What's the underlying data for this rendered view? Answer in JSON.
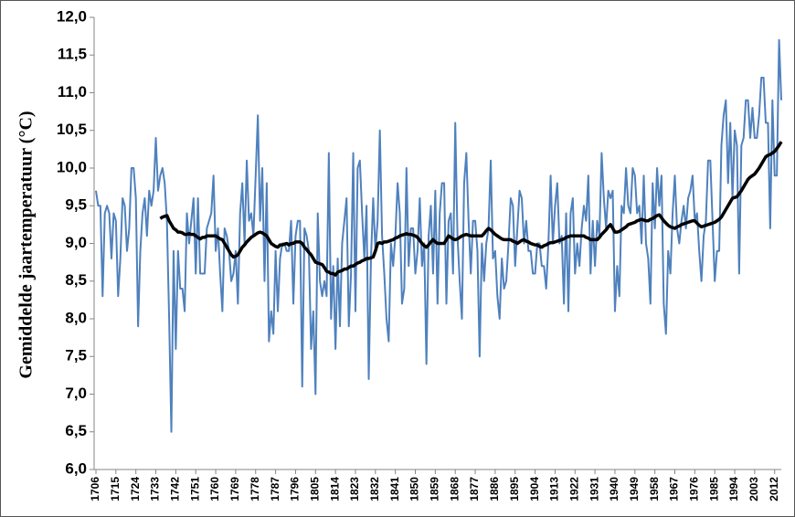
{
  "chart_data": {
    "type": "line",
    "y_label": "Gemiddelde jaartemperatuur (°C)",
    "x": [
      1706,
      1707,
      1708,
      1709,
      1710,
      1711,
      1712,
      1713,
      1714,
      1715,
      1716,
      1717,
      1718,
      1719,
      1720,
      1721,
      1722,
      1723,
      1724,
      1725,
      1726,
      1727,
      1728,
      1729,
      1730,
      1731,
      1732,
      1733,
      1734,
      1735,
      1736,
      1737,
      1738,
      1739,
      1740,
      1741,
      1742,
      1743,
      1744,
      1745,
      1746,
      1747,
      1748,
      1749,
      1750,
      1751,
      1752,
      1753,
      1754,
      1755,
      1756,
      1757,
      1758,
      1759,
      1760,
      1761,
      1762,
      1763,
      1764,
      1765,
      1766,
      1767,
      1768,
      1769,
      1770,
      1771,
      1772,
      1773,
      1774,
      1775,
      1776,
      1777,
      1778,
      1779,
      1780,
      1781,
      1782,
      1783,
      1784,
      1785,
      1786,
      1787,
      1788,
      1789,
      1790,
      1791,
      1792,
      1793,
      1794,
      1795,
      1796,
      1797,
      1798,
      1799,
      1800,
      1801,
      1802,
      1803,
      1804,
      1805,
      1806,
      1807,
      1808,
      1809,
      1810,
      1811,
      1812,
      1813,
      1814,
      1815,
      1816,
      1817,
      1818,
      1819,
      1820,
      1821,
      1822,
      1823,
      1824,
      1825,
      1826,
      1827,
      1828,
      1829,
      1830,
      1831,
      1832,
      1833,
      1834,
      1835,
      1836,
      1837,
      1838,
      1839,
      1840,
      1841,
      1842,
      1843,
      1844,
      1845,
      1846,
      1847,
      1848,
      1849,
      1850,
      1851,
      1852,
      1853,
      1854,
      1855,
      1856,
      1857,
      1858,
      1859,
      1860,
      1861,
      1862,
      1863,
      1864,
      1865,
      1866,
      1867,
      1868,
      1869,
      1870,
      1871,
      1872,
      1873,
      1874,
      1875,
      1876,
      1877,
      1878,
      1879,
      1880,
      1881,
      1882,
      1883,
      1884,
      1885,
      1886,
      1887,
      1888,
      1889,
      1890,
      1891,
      1892,
      1893,
      1894,
      1895,
      1896,
      1897,
      1898,
      1899,
      1900,
      1901,
      1902,
      1903,
      1904,
      1905,
      1906,
      1907,
      1908,
      1909,
      1910,
      1911,
      1912,
      1913,
      1914,
      1915,
      1916,
      1917,
      1918,
      1919,
      1920,
      1921,
      1922,
      1923,
      1924,
      1925,
      1926,
      1927,
      1928,
      1929,
      1930,
      1931,
      1932,
      1933,
      1934,
      1935,
      1936,
      1937,
      1938,
      1939,
      1940,
      1941,
      1942,
      1943,
      1944,
      1945,
      1946,
      1947,
      1948,
      1949,
      1950,
      1951,
      1952,
      1953,
      1954,
      1955,
      1956,
      1957,
      1958,
      1959,
      1960,
      1961,
      1962,
      1963,
      1964,
      1965,
      1966,
      1967,
      1968,
      1969,
      1970,
      1971,
      1972,
      1973,
      1974,
      1975,
      1976,
      1977,
      1978,
      1979,
      1980,
      1981,
      1982,
      1983,
      1984,
      1985,
      1986,
      1987,
      1988,
      1989,
      1990,
      1991,
      1992,
      1993,
      1994,
      1995,
      1996,
      1997,
      1998,
      1999,
      2000,
      2001,
      2002,
      2003,
      2004,
      2005,
      2006,
      2007,
      2008,
      2009,
      2010,
      2011,
      2012,
      2013,
      2014,
      2015
    ],
    "series": [
      {
        "color": "#4f81bd",
        "values": [
          9.7,
          9.5,
          9.5,
          8.3,
          9.4,
          9.5,
          9.4,
          8.8,
          9.4,
          9.3,
          8.3,
          8.8,
          9.6,
          9.5,
          8.9,
          9.2,
          10.0,
          10.0,
          9.6,
          7.9,
          8.9,
          9.4,
          9.6,
          9.1,
          9.7,
          9.5,
          9.7,
          10.4,
          9.7,
          9.9,
          10.0,
          9.8,
          9.3,
          8.0,
          6.5,
          8.9,
          7.6,
          8.9,
          8.4,
          8.4,
          8.1,
          9.4,
          9.0,
          9.3,
          9.6,
          8.6,
          9.6,
          8.6,
          8.6,
          8.6,
          9.2,
          9.3,
          9.4,
          9.9,
          8.9,
          9.2,
          8.6,
          8.1,
          9.2,
          9.1,
          8.9,
          8.5,
          8.6,
          8.9,
          8.2,
          9.4,
          9.8,
          9.0,
          10.1,
          9.3,
          9.4,
          9.1,
          9.9,
          10.7,
          9.3,
          10.0,
          8.5,
          9.8,
          7.7,
          8.1,
          7.8,
          8.9,
          8.1,
          8.8,
          9.0,
          9.0,
          8.9,
          8.9,
          9.3,
          8.2,
          9.1,
          9.3,
          9.3,
          7.1,
          9.2,
          9.1,
          8.9,
          7.6,
          8.1,
          7.0,
          9.4,
          8.5,
          8.3,
          8.5,
          8.3,
          10.2,
          8.0,
          8.7,
          7.6,
          8.8,
          7.9,
          9.0,
          9.3,
          9.6,
          7.9,
          8.6,
          10.2,
          8.1,
          10.0,
          10.1,
          9.4,
          8.8,
          9.5,
          7.2,
          8.8,
          9.6,
          8.9,
          9.3,
          10.5,
          9.1,
          8.6,
          8.0,
          7.7,
          9.0,
          8.7,
          9.1,
          9.8,
          9.4,
          8.2,
          8.4,
          10.0,
          8.7,
          9.2,
          9.2,
          8.6,
          8.9,
          9.6,
          8.7,
          9.0,
          7.4,
          9.1,
          9.5,
          8.6,
          9.7,
          8.2,
          9.4,
          9.8,
          9.8,
          8.2,
          9.3,
          9.4,
          8.6,
          10.6,
          9.1,
          8.5,
          8.0,
          9.8,
          10.2,
          9.3,
          8.6,
          9.3,
          9.3,
          8.9,
          7.5,
          9.0,
          8.5,
          9.0,
          9.2,
          10.1,
          8.8,
          8.9,
          8.3,
          8.0,
          8.8,
          8.4,
          8.5,
          9.0,
          9.6,
          9.5,
          8.7,
          9.2,
          9.7,
          9.6,
          9.0,
          9.3,
          8.9,
          8.9,
          8.6,
          8.6,
          9.0,
          9.0,
          8.7,
          8.7,
          8.4,
          9.0,
          9.9,
          9.0,
          9.5,
          9.8,
          9.0,
          9.1,
          8.2,
          9.4,
          8.1,
          9.4,
          9.6,
          8.6,
          9.0,
          8.7,
          9.2,
          9.5,
          9.3,
          9.9,
          8.6,
          9.3,
          8.7,
          9.3,
          9.1,
          10.2,
          9.6,
          9.2,
          9.7,
          9.6,
          9.7,
          8.1,
          8.7,
          8.3,
          9.5,
          9.4,
          10.0,
          9.5,
          9.4,
          10.0,
          9.9,
          9.4,
          9.5,
          9.0,
          9.9,
          9.0,
          8.8,
          8.2,
          9.8,
          9.2,
          10.0,
          9.5,
          9.9,
          8.2,
          7.8,
          8.9,
          8.6,
          9.4,
          9.9,
          9.2,
          9.0,
          9.3,
          9.5,
          9.2,
          9.6,
          9.7,
          9.9,
          9.3,
          9.4,
          8.9,
          8.5,
          9.1,
          9.3,
          10.1,
          10.1,
          9.3,
          8.5,
          8.9,
          8.9,
          10.3,
          10.7,
          10.9,
          9.8,
          10.6,
          9.6,
          10.5,
          10.3,
          8.6,
          10.3,
          10.4,
          10.9,
          10.9,
          10.4,
          10.8,
          10.4,
          10.4,
          10.7,
          11.2,
          11.2,
          10.6,
          10.6,
          9.2,
          10.9,
          9.9,
          9.9,
          11.7,
          10.9
        ]
      },
      {
        "color": "#000000",
        "values": [
          null,
          null,
          null,
          null,
          null,
          null,
          null,
          null,
          null,
          null,
          null,
          null,
          null,
          null,
          null,
          null,
          null,
          null,
          null,
          null,
          null,
          null,
          null,
          null,
          null,
          null,
          null,
          null,
          null,
          9.33,
          9.35,
          9.36,
          9.37,
          9.3,
          9.25,
          9.2,
          9.18,
          9.15,
          9.15,
          9.14,
          9.12,
          9.12,
          9.13,
          9.12,
          9.12,
          9.1,
          9.08,
          9.06,
          9.08,
          9.08,
          9.1,
          9.1,
          9.1,
          9.1,
          9.1,
          9.08,
          9.06,
          9.05,
          9.0,
          8.95,
          8.9,
          8.85,
          8.82,
          8.83,
          8.85,
          8.9,
          8.95,
          8.98,
          9.02,
          9.05,
          9.08,
          9.1,
          9.12,
          9.14,
          9.15,
          9.14,
          9.12,
          9.1,
          9.05,
          9.0,
          8.98,
          8.96,
          8.95,
          8.98,
          8.98,
          8.99,
          9.0,
          8.98,
          9.0,
          9.0,
          9.02,
          9.02,
          9.02,
          9.0,
          8.95,
          8.92,
          8.88,
          8.85,
          8.8,
          8.75,
          8.74,
          8.73,
          8.72,
          8.68,
          8.63,
          8.62,
          8.6,
          8.6,
          8.58,
          8.62,
          8.63,
          8.64,
          8.66,
          8.66,
          8.68,
          8.7,
          8.7,
          8.72,
          8.74,
          8.75,
          8.77,
          8.78,
          8.8,
          8.8,
          8.81,
          8.82,
          8.9,
          9.0,
          9.01,
          9.0,
          9.02,
          9.02,
          9.03,
          9.04,
          9.05,
          9.07,
          9.08,
          9.1,
          9.11,
          9.12,
          9.13,
          9.12,
          9.12,
          9.11,
          9.1,
          9.08,
          9.04,
          9.0,
          8.97,
          8.95,
          8.98,
          9.02,
          9.05,
          9.02,
          9.0,
          9.0,
          9.0,
          9.0,
          9.05,
          9.1,
          9.08,
          9.06,
          9.05,
          9.06,
          9.08,
          9.1,
          9.11,
          9.12,
          9.11,
          9.1,
          9.1,
          9.1,
          9.1,
          9.1,
          9.1,
          9.13,
          9.17,
          9.2,
          9.18,
          9.15,
          9.12,
          9.1,
          9.08,
          9.06,
          9.05,
          9.05,
          9.05,
          9.05,
          9.03,
          9.02,
          9.0,
          9.02,
          9.04,
          9.05,
          9.03,
          9.02,
          9.0,
          8.99,
          8.98,
          8.98,
          8.96,
          8.95,
          8.97,
          8.98,
          9.0,
          9.01,
          9.01,
          9.02,
          9.03,
          9.04,
          9.05,
          9.06,
          9.08,
          9.09,
          9.1,
          9.1,
          9.1,
          9.1,
          9.1,
          9.1,
          9.1,
          9.08,
          9.07,
          9.05,
          9.05,
          9.05,
          9.05,
          9.08,
          9.12,
          9.15,
          9.18,
          9.22,
          9.25,
          9.2,
          9.15,
          9.15,
          9.16,
          9.18,
          9.2,
          9.22,
          9.25,
          9.26,
          9.27,
          9.28,
          9.3,
          9.31,
          9.32,
          9.31,
          9.3,
          9.3,
          9.32,
          9.33,
          9.35,
          9.37,
          9.38,
          9.34,
          9.3,
          9.27,
          9.24,
          9.22,
          9.21,
          9.2,
          9.22,
          9.23,
          9.25,
          9.26,
          9.27,
          9.28,
          9.29,
          9.3,
          9.3,
          9.27,
          9.24,
          9.22,
          9.23,
          9.24,
          9.25,
          9.26,
          9.27,
          9.28,
          9.3,
          9.32,
          9.35,
          9.4,
          9.45,
          9.5,
          9.55,
          9.6,
          9.61,
          9.62,
          9.66,
          9.7,
          9.75,
          9.8,
          9.85,
          9.88,
          9.9,
          9.92,
          9.96,
          10.0,
          10.05,
          10.1,
          10.15,
          10.17,
          10.18,
          10.2,
          10.22,
          10.26,
          10.3,
          10.35
        ]
      }
    ],
    "xlim": [
      1706,
      2015
    ],
    "xticks": [
      1706,
      1715,
      1724,
      1733,
      1742,
      1751,
      1760,
      1769,
      1778,
      1787,
      1796,
      1805,
      1814,
      1823,
      1832,
      1841,
      1850,
      1859,
      1868,
      1877,
      1886,
      1895,
      1904,
      1913,
      1922,
      1931,
      1940,
      1949,
      1958,
      1967,
      1976,
      1985,
      1994,
      2003,
      2012
    ],
    "ylim": [
      6,
      12
    ],
    "yticks": [
      {
        "value": 6,
        "label": "6,0"
      },
      {
        "value": 6.5,
        "label": "6,5"
      },
      {
        "value": 7,
        "label": "7,0"
      },
      {
        "value": 7.5,
        "label": "7,5"
      },
      {
        "value": 8,
        "label": "8,0"
      },
      {
        "value": 8.5,
        "label": "8,5"
      },
      {
        "value": 9,
        "label": "9,0"
      },
      {
        "value": 9.5,
        "label": "9,5"
      },
      {
        "value": 10,
        "label": "10,0"
      },
      {
        "value": 10.5,
        "label": "10,5"
      },
      {
        "value": 11,
        "label": "11,0"
      },
      {
        "value": 11.5,
        "label": "11,5"
      },
      {
        "value": 12,
        "label": "12,0"
      }
    ],
    "grid": false
  }
}
